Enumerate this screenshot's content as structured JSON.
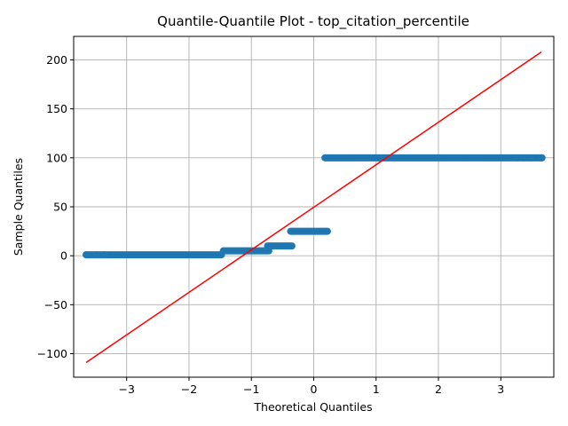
{
  "chart_data": {
    "type": "scatter",
    "title": "Quantile-Quantile Plot - top_citation_percentile",
    "xlabel": "Theoretical Quantiles",
    "ylabel": "Sample Quantiles",
    "xlim": [
      -3.85,
      3.85
    ],
    "ylim": [
      -124,
      224
    ],
    "xticks": [
      -3,
      -2,
      -1,
      0,
      1,
      2,
      3
    ],
    "xtick_labels": [
      "−3",
      "−2",
      "−1",
      "0",
      "1",
      "2",
      "3"
    ],
    "yticks": [
      -100,
      -50,
      0,
      50,
      100,
      150,
      200
    ],
    "ytick_labels": [
      "−100",
      "−50",
      "0",
      "50",
      "100",
      "150",
      "200"
    ],
    "grid": true,
    "marker_color": "#1f77b4",
    "line_color": "#ff0000",
    "series": [
      {
        "role": "sample-points",
        "step_segments": [
          {
            "y": 1,
            "x_start": -3.65,
            "x_end": -1.48
          },
          {
            "y": 5,
            "x_start": -1.45,
            "x_end": -0.72
          },
          {
            "y": 10,
            "x_start": -0.74,
            "x_end": -0.35
          },
          {
            "y": 25,
            "x_start": -0.37,
            "x_end": 0.22
          },
          {
            "y": 100,
            "x_start": 0.18,
            "x_end": 3.66
          }
        ],
        "outlier_points": [
          {
            "x": -3.65,
            "y": 1
          },
          {
            "x": -3.48,
            "y": 1
          },
          {
            "x": -3.36,
            "y": 1
          },
          {
            "x": 3.26,
            "y": 100
          },
          {
            "x": 3.36,
            "y": 100
          },
          {
            "x": 3.48,
            "y": 100
          },
          {
            "x": 3.66,
            "y": 100
          }
        ]
      },
      {
        "role": "reference-line",
        "points": [
          {
            "x": -3.65,
            "y": -109
          },
          {
            "x": 3.65,
            "y": 208
          }
        ]
      }
    ]
  }
}
